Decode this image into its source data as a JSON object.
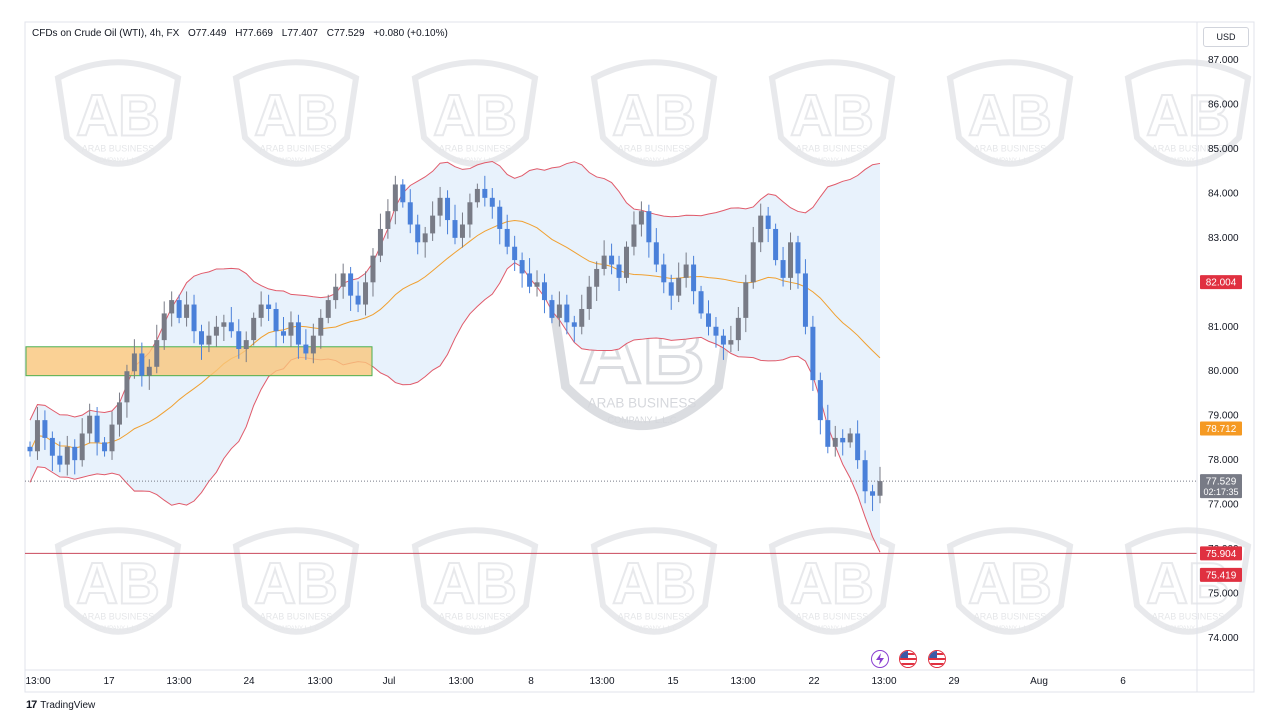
{
  "legend": {
    "symbol": "CFDs on Crude Oil (WTI), 4h, FX",
    "open": "O77.449",
    "high": "H77.669",
    "low": "L77.407",
    "close": "C77.529",
    "change": "+0.080 (+0.10%)"
  },
  "currency": "USD",
  "brand": {
    "name": "TradingView"
  },
  "watermark": {
    "text": "ARAB BUSINESS",
    "subtext": "COMPANY L.L.C"
  },
  "colors": {
    "up": "#787b86",
    "down": "#4a80d9",
    "band": "#e05a6a",
    "basis": "#f0a030",
    "zone": "#f9c67a",
    "accent_red": "#e03040"
  },
  "chart_data": {
    "type": "candlestick",
    "timeframe": "4h",
    "y_ticks": [
      "87.000",
      "86.000",
      "85.000",
      "84.000",
      "83.000",
      "82.000",
      "81.000",
      "80.000",
      "79.000",
      "78.000",
      "77.000",
      "76.000",
      "75.000",
      "74.000"
    ],
    "x_ticks": [
      "13:00",
      "17",
      "13:00",
      "24",
      "13:00",
      "Jul",
      "13:00",
      "8",
      "13:00",
      "15",
      "13:00",
      "22",
      "13:00",
      "29",
      "Aug",
      "6"
    ],
    "price_labels": [
      {
        "text": "82.004",
        "value": 82.004,
        "color": "#e03040"
      },
      {
        "text": "78.712",
        "value": 78.712,
        "color": "#f59a23"
      },
      {
        "text": "77.529",
        "value": 77.529,
        "color": "#787b86"
      },
      {
        "text": "75.904",
        "value": 75.904,
        "color": "#e03040"
      },
      {
        "text": "75.419",
        "value": 75.419,
        "color": "#e03040"
      }
    ],
    "countdown": "02:17:35",
    "horizontal_line": 75.904,
    "current_price": 77.529,
    "zone": {
      "top": 80.55,
      "bottom": 79.9
    },
    "close_path": [
      78.2,
      78.9,
      78.5,
      78.1,
      77.9,
      78.3,
      78.0,
      78.6,
      79.0,
      78.4,
      78.2,
      78.8,
      79.3,
      80.0,
      80.4,
      79.9,
      80.1,
      80.7,
      81.3,
      81.6,
      81.2,
      81.5,
      80.9,
      80.6,
      80.8,
      81.0,
      81.1,
      80.9,
      80.5,
      80.7,
      81.2,
      81.5,
      81.4,
      80.9,
      80.8,
      81.1,
      80.6,
      80.4,
      80.8,
      81.2,
      81.6,
      81.9,
      82.2,
      81.7,
      81.5,
      82.0,
      82.6,
      83.2,
      83.6,
      84.2,
      83.8,
      83.3,
      82.9,
      83.1,
      83.5,
      83.9,
      83.4,
      83.0,
      83.3,
      83.8,
      84.1,
      83.9,
      83.7,
      83.2,
      82.8,
      82.5,
      82.2,
      81.9,
      82.0,
      81.6,
      81.2,
      81.5,
      81.1,
      81.0,
      81.4,
      81.9,
      82.3,
      82.6,
      82.4,
      82.1,
      82.8,
      83.3,
      83.6,
      82.9,
      82.4,
      82.0,
      81.7,
      82.1,
      82.4,
      81.8,
      81.3,
      81.0,
      80.8,
      80.6,
      80.7,
      81.2,
      82.0,
      82.9,
      83.5,
      83.2,
      82.5,
      82.1,
      82.9,
      82.2,
      81.0,
      79.8,
      78.9,
      78.3,
      78.5,
      78.4,
      78.6,
      78.0,
      77.3,
      77.2,
      77.529
    ],
    "bollinger": {
      "basis_color": "#f0a030",
      "band_color": "#e05a6a",
      "fill": "#e8f2fc"
    }
  }
}
